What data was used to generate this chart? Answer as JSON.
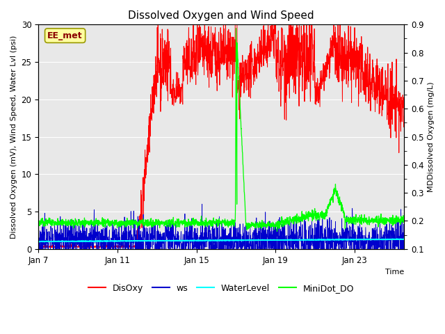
{
  "title": "Dissolved Oxygen and Wind Speed",
  "xlabel": "Time",
  "ylabel_left": "Dissolved Oxygen (mV), Wind Speed, Water Lvl (psi)",
  "ylabel_right": "MDDissolved Oxygen (mg/L)",
  "ylim_left": [
    0,
    30
  ],
  "ylim_right": [
    0.1,
    0.9
  ],
  "yticks_left": [
    0,
    5,
    10,
    15,
    20,
    25,
    30
  ],
  "yticks_right": [
    0.1,
    0.2,
    0.3,
    0.4,
    0.5,
    0.6,
    0.7,
    0.8,
    0.9
  ],
  "xtick_labels": [
    "Jan 7",
    "Jan 11",
    "Jan 15",
    "Jan 19",
    "Jan 23"
  ],
  "annotation_text": "EE_met",
  "annotation_color": "#8B0000",
  "annotation_bg": "#FFFFA0",
  "bg_color": "#FFFFFF",
  "plot_bg_color": "#E8E8E8",
  "grid_color": "#FFFFFF",
  "title_fontsize": 11,
  "axis_fontsize": 8,
  "tick_fontsize": 8.5
}
